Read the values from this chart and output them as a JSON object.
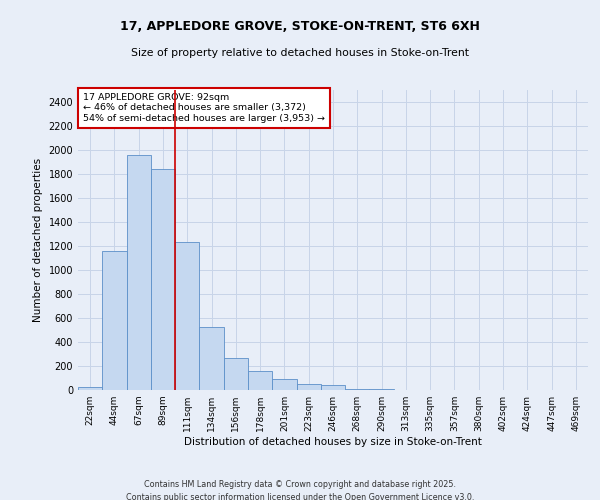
{
  "title1": "17, APPLEDORE GROVE, STOKE-ON-TRENT, ST6 6XH",
  "title2": "Size of property relative to detached houses in Stoke-on-Trent",
  "xlabel": "Distribution of detached houses by size in Stoke-on-Trent",
  "ylabel": "Number of detached properties",
  "categories": [
    "22sqm",
    "44sqm",
    "67sqm",
    "89sqm",
    "111sqm",
    "134sqm",
    "156sqm",
    "178sqm",
    "201sqm",
    "223sqm",
    "246sqm",
    "268sqm",
    "290sqm",
    "313sqm",
    "335sqm",
    "357sqm",
    "380sqm",
    "402sqm",
    "424sqm",
    "447sqm",
    "469sqm"
  ],
  "values": [
    25,
    1160,
    1960,
    1845,
    1230,
    525,
    270,
    155,
    90,
    52,
    42,
    12,
    5,
    3,
    2,
    2,
    1,
    1,
    1,
    1,
    1
  ],
  "bar_color": "#c5d8f0",
  "bar_edge_color": "#5b8fc9",
  "subject_line_color": "#cc0000",
  "annotation_text": "17 APPLEDORE GROVE: 92sqm\n← 46% of detached houses are smaller (3,372)\n54% of semi-detached houses are larger (3,953) →",
  "annotation_box_color": "#ffffff",
  "annotation_box_edge": "#cc0000",
  "ylim": [
    0,
    2500
  ],
  "yticks": [
    0,
    200,
    400,
    600,
    800,
    1000,
    1200,
    1400,
    1600,
    1800,
    2000,
    2200,
    2400
  ],
  "grid_color": "#c8d4e8",
  "background_color": "#e8eef8",
  "footer1": "Contains HM Land Registry data © Crown copyright and database right 2025.",
  "footer2": "Contains public sector information licensed under the Open Government Licence v3.0."
}
